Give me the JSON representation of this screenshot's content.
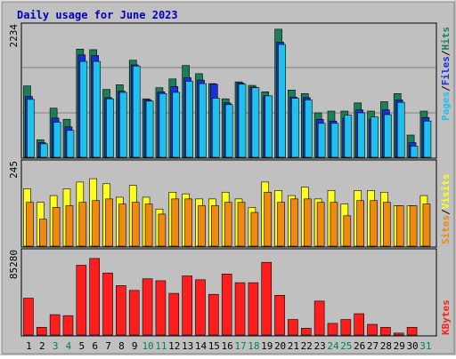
{
  "chart_data": [
    {
      "type": "bar",
      "panel": "hits-files-pages",
      "title": "Daily usage for June 2023",
      "y_max_label": "2234",
      "ylim": [
        0,
        2234
      ],
      "categories": [
        "1",
        "2",
        "3",
        "4",
        "5",
        "6",
        "7",
        "8",
        "9",
        "10",
        "11",
        "12",
        "13",
        "14",
        "15",
        "16",
        "17",
        "18",
        "19",
        "20",
        "21",
        "22",
        "23",
        "24",
        "25",
        "26",
        "27",
        "28",
        "29",
        "30",
        "31"
      ],
      "weekend_days": [
        "3",
        "4",
        "10",
        "11",
        "17",
        "18",
        "24",
        "25",
        "31"
      ],
      "series": [
        {
          "name": "Hits",
          "color": "#1b7f55",
          "values": [
            1220,
            300,
            840,
            650,
            1850,
            1840,
            1160,
            1240,
            1660,
            1000,
            1190,
            1340,
            1570,
            1430,
            1260,
            1000,
            1290,
            1230,
            1120,
            2190,
            1150,
            1090,
            760,
            790,
            790,
            930,
            790,
            950,
            1090,
            380,
            790
          ]
        },
        {
          "name": "Files",
          "color": "#1a2fd8",
          "values": [
            1040,
            250,
            670,
            520,
            1750,
            1740,
            1020,
            1130,
            1580,
            980,
            1120,
            1210,
            1360,
            1320,
            1250,
            930,
            1270,
            1200,
            1050,
            1970,
            1030,
            1020,
            650,
            620,
            670,
            810,
            650,
            810,
            980,
            250,
            680
          ]
        },
        {
          "name": "Pages",
          "color": "#1ec1ee",
          "values": [
            990,
            230,
            600,
            460,
            1640,
            1640,
            1000,
            1110,
            1560,
            960,
            1090,
            1110,
            1300,
            1260,
            1010,
            900,
            1250,
            1190,
            1050,
            1930,
            1010,
            980,
            580,
            580,
            720,
            760,
            690,
            730,
            940,
            190,
            620
          ]
        }
      ],
      "legend": [
        "Pages",
        "Files",
        "Hits"
      ]
    },
    {
      "type": "bar",
      "panel": "visits-sites",
      "y_max_label": "245",
      "ylim": [
        0,
        245
      ],
      "categories": [
        "1",
        "2",
        "3",
        "4",
        "5",
        "6",
        "7",
        "8",
        "9",
        "10",
        "11",
        "12",
        "13",
        "14",
        "15",
        "16",
        "17",
        "18",
        "19",
        "20",
        "21",
        "22",
        "23",
        "24",
        "25",
        "26",
        "27",
        "28",
        "29",
        "30",
        "31"
      ],
      "series": [
        {
          "name": "Visits",
          "color": "#ffff1e",
          "values": [
            170,
            130,
            150,
            170,
            190,
            200,
            185,
            145,
            180,
            145,
            110,
            160,
            155,
            140,
            140,
            160,
            140,
            115,
            190,
            165,
            150,
            175,
            140,
            165,
            125,
            165,
            165,
            160,
            120,
            120,
            150
          ]
        },
        {
          "name": "Sites",
          "color": "#ef8a10",
          "values": [
            130,
            80,
            115,
            120,
            130,
            135,
            140,
            125,
            130,
            125,
            95,
            140,
            140,
            120,
            120,
            130,
            130,
            100,
            160,
            130,
            140,
            140,
            130,
            130,
            90,
            135,
            135,
            130,
            120,
            120,
            125
          ]
        }
      ],
      "legend": [
        "Sites",
        "Visits"
      ]
    },
    {
      "type": "bar",
      "panel": "kbytes",
      "y_max_label": "85280",
      "ylim": [
        0,
        85280
      ],
      "categories": [
        "1",
        "2",
        "3",
        "4",
        "5",
        "6",
        "7",
        "8",
        "9",
        "10",
        "11",
        "12",
        "13",
        "14",
        "15",
        "16",
        "17",
        "18",
        "19",
        "20",
        "21",
        "22",
        "23",
        "24",
        "25",
        "26",
        "27",
        "28",
        "29",
        "30",
        "31"
      ],
      "series": [
        {
          "name": "KBytes",
          "color": "#ff1e1e",
          "values": [
            38000,
            8000,
            21000,
            20000,
            72000,
            79000,
            64000,
            51000,
            46000,
            58000,
            56000,
            43000,
            61000,
            57000,
            42000,
            63000,
            54000,
            54000,
            75000,
            41000,
            16000,
            7000,
            35000,
            12000,
            16000,
            22000,
            11000,
            8000,
            2000,
            8000,
            0
          ]
        }
      ],
      "legend": [
        "KBytes"
      ]
    }
  ],
  "axis_labels": {
    "hits": "Hits",
    "files": "Files",
    "pages": "Pages",
    "visits": "Visits",
    "sites": "Sites",
    "kbytes": "KBytes",
    "slash": "/"
  },
  "colors": {
    "background": "#c0c0c0",
    "panel_bg": "#c0c0c0",
    "border_dark": "#000000",
    "title": "#0000c0",
    "grid": "#808080",
    "weekday_label": "#000000",
    "weekend_label": "#00805f"
  }
}
